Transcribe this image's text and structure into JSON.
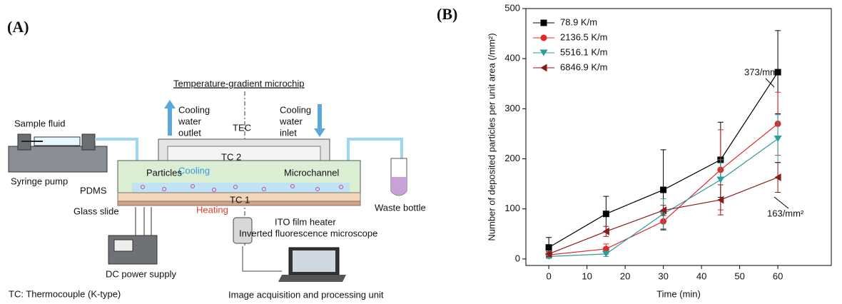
{
  "panel_a": {
    "label": "(A)",
    "title": "Temperature-gradient microchip",
    "sample_fluid": "Sample fluid",
    "syringe_pump": "Syringe pump",
    "cooling_outlet": [
      "Cooling",
      "water",
      "outlet"
    ],
    "tec": "TEC",
    "cooling_inlet": [
      "Cooling",
      "water",
      "inlet"
    ],
    "tc2": "TC 2",
    "cooling": "Cooling",
    "particles": "Particles",
    "microchannel": "Microchannel",
    "pdms": "PDMS",
    "tc1": "TC 1",
    "heating": "Heating",
    "glass_slide": "Glass slide",
    "ito": "ITO film heater",
    "waste_bottle": "Waste bottle",
    "microscope": "Inverted fluorescence microscope",
    "dc_power": "DC power supply",
    "tc_note": "TC: Thermocouple (K-type)",
    "image_unit": "Image acquisition and processing unit"
  },
  "chart_data": {
    "type": "line",
    "panel_label": "(B)",
    "x_label": "Time (min)",
    "y_label": "Number of deposited particles per unit area (/mm²)",
    "x": [
      0,
      15,
      30,
      45,
      60
    ],
    "xlim": [
      -6,
      74
    ],
    "xticks": [
      0,
      10,
      20,
      30,
      40,
      50,
      60
    ],
    "ylim": [
      -13,
      500
    ],
    "yticks": [
      0,
      100,
      200,
      300,
      400,
      500
    ],
    "legend": "upper left",
    "series": [
      {
        "name": "78.9 K/m",
        "color": "#000000",
        "marker": "square",
        "values": [
          23,
          90,
          138,
          198,
          373
        ],
        "errors": [
          20,
          35,
          80,
          75,
          83
        ]
      },
      {
        "name": "2136.5 K/m",
        "color": "#e02a2a",
        "marker": "circle",
        "values": [
          8,
          20,
          75,
          178,
          270
        ],
        "errors": [
          5,
          10,
          15,
          80,
          63
        ]
      },
      {
        "name": "5516.1 K/m",
        "color": "#2a9d9d",
        "marker": "triangle-down",
        "values": [
          5,
          10,
          90,
          158,
          240
        ],
        "errors": [
          4,
          5,
          30,
          40,
          48
        ]
      },
      {
        "name": "6846.9 K/m",
        "color": "#8b1a1a",
        "marker": "triangle-left",
        "values": [
          10,
          55,
          97,
          118,
          163
        ],
        "errors": [
          5,
          10,
          10,
          30,
          30
        ]
      }
    ],
    "annotations": [
      "373/mm²",
      "163/mm²"
    ]
  }
}
